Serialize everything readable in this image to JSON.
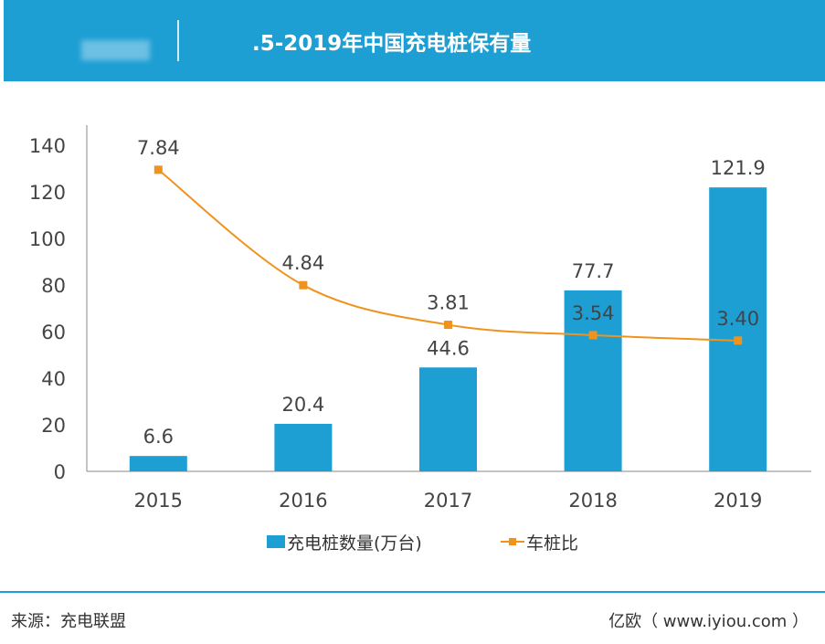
{
  "header": {
    "title": ".5-2019年中国充电桩保有量"
  },
  "chart_data": {
    "type": "bar+line",
    "categories": [
      "2015",
      "2016",
      "2017",
      "2018",
      "2019"
    ],
    "series": [
      {
        "name": "充电桩数量(万台)",
        "type": "bar",
        "axis": "left",
        "values": [
          6.6,
          20.4,
          44.6,
          77.7,
          121.9
        ],
        "labels": [
          "6.6",
          "20.4",
          "44.6",
          "77.7",
          "121.9"
        ],
        "color": "#1e9fd4"
      },
      {
        "name": "车桩比",
        "type": "line",
        "axis": "right-hidden",
        "values": [
          7.84,
          4.84,
          3.81,
          3.54,
          3.4
        ],
        "labels": [
          "7.84",
          "4.84",
          "3.81",
          "3.54",
          "3.40"
        ],
        "color": "#f0921e"
      }
    ],
    "yticks": [
      "0",
      "20",
      "40",
      "60",
      "80",
      "100",
      "120",
      "140"
    ],
    "ylim": [
      0,
      140
    ],
    "y2lim": [
      0,
      9
    ],
    "grid": false,
    "legend": "bottom"
  },
  "footer": {
    "source": "来源：充电联盟",
    "credit": "亿欧（ www.iyiou.com ）"
  }
}
